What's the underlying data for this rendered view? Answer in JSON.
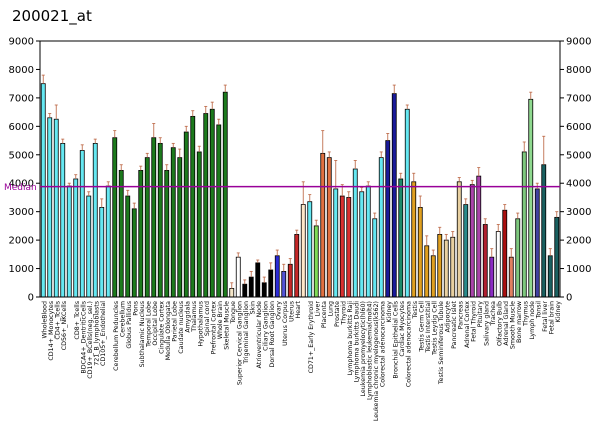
{
  "chart_data": {
    "type": "bar",
    "title": "200021_at",
    "median_label": "Median",
    "median_value": 3880,
    "ylim": [
      0,
      9000
    ],
    "yticks": [
      "0",
      "1000",
      "2000",
      "3000",
      "4000",
      "5000",
      "6000",
      "7000",
      "8000",
      "9000"
    ],
    "grid": false,
    "categories": [
      "WholeBlood",
      "CD14+_Monocytes",
      "CD4+_Tcells",
      "CD56+_NKCells",
      "721_B_lymphoblasts",
      "CD8+_Tcells",
      "BDCA4+_DentriticCells",
      "CD19+_BCells(neg._sel.)",
      "CD34+",
      "CD105+_Endothelial",
      "BM-CD33+Myeloid",
      "Cerebellum Peduncles",
      "Cerebellum",
      "Globus Pallidus",
      "Pons",
      "Subthalamic Nucleus",
      "Temporal Lobe",
      "Occipital Lobe",
      "Cingulate Cortex",
      "Medulla Oblongata",
      "Parietal Lobe",
      "Caudate nucleus",
      "Amygdala",
      "Thalamus",
      "Hypothalamus",
      "Spinal cord",
      "Prefrontal Cortex",
      "Whole Brain",
      "Skeletal Muscle",
      "Tongue",
      "Superior Cervical Ganglion",
      "Trigeminal Ganglion",
      "Skin",
      "Atrioventricular Node",
      "Ciliary Ganglion",
      "Dorsal Root Ganglion",
      "Ovary",
      "Uterus Corpus",
      "Uterus",
      "Heart",
      "Appendix",
      "CD71+_Early Erythroid",
      "Liver",
      "Placenta",
      "Lung",
      "Prostate",
      "Thyroid",
      "Lymphoma burkitts Raji",
      "Lymphoma burkitts Daudi",
      "Leukemia promyelocytic(hl60)",
      "Lymphoblastic leukemia(molt4)",
      "Leukemia chronic myelogenous(k562)",
      "Colorectal adenocarcinoma",
      "Kidney",
      "Bronchial Epithelial Cells",
      "Cardiac Myocytes",
      "Colorectal adenocarcinoma",
      "Testis",
      "Testis Germ Cell",
      "Testis Interstitial",
      "Testis Leydig Cell",
      "Testis Seminiferous Tubule",
      "Adipocyte",
      "Pancreatic Islet",
      "Pancreas",
      "Adrenal Cortex",
      "Fetal Thyroid",
      "Pituitary",
      "Salivary gland",
      "Trachea",
      "Olfactory Bulb",
      "Adrenal Gland",
      "Smooth Muscle",
      "Bone marrow",
      "Thymus",
      "Lymph node",
      "Tonsil",
      "Fetal liver",
      "Fetal brain",
      "Kidney"
    ],
    "xtick_labels": [
      "WholeBlood",
      "CD14+_Monocytes",
      "CD4+_Tcells",
      "CD56+_NKCells",
      "",
      "CD8+_Tcells",
      "BDCA4+_DentriticCells",
      "CD19+_BCells(neg._sel.)",
      "721_B_lymphoblasts",
      "CD105+_Endothelial",
      "",
      "Cerebellum Peduncles",
      "Cerebellum",
      "Globus Pallidus",
      "Pons",
      "Subthalamic Nucleus",
      "Temporal Lobe",
      "Occipital Lobe",
      "Cingulate Cortex",
      "Medulla Oblongata",
      "Parietal Lobe",
      "Caudate nucleus",
      "Amygdala",
      "Thalamus",
      "Hypothalamus",
      "Spinal cord",
      "Prefrontal Cortex",
      "Whole Brain",
      "Skeletal Muscle",
      "Tongue",
      "Superior Cervical Ganglion",
      "Trigeminal Ganglion",
      "Skin",
      "Atrioventricular Node",
      "Ciliary Ganglion",
      "Dorsal Root Ganglion",
      "Ovary",
      "Uterus Corpus",
      "Uterus",
      "Heart",
      "",
      "CD71+_Early Erythroid",
      "Liver",
      "Placenta",
      "Lung",
      "Prostate",
      "Thyroid",
      "Lymphoma burkitts Raji",
      "Lymphoma burkitts Daudi",
      "Leukemia promyelocytic(hl60)",
      "Lymphoblastic leukemia(molt4)",
      "Leukemia chronic myelogenous(k562)",
      "Colorectal adenocarcinoma",
      "Kidney",
      "Bronchial Epithelial Cells",
      "Cardiac Myocytes",
      "Colorectal adenocarcinoma",
      "Testis",
      "Testis Germ Cell",
      "Testis Interstitial",
      "Testis Leydig Cell",
      "Testis Seminiferous Tubule",
      "Adipocyte",
      "Pancreatic Islet",
      "Pancreas",
      "Adrenal Cortex",
      "Fetal Thyroid",
      "Pituitary",
      "Salivary gland",
      "Trachea",
      "Olfactory Bulb",
      "Adrenal Gland",
      "Smooth Muscle",
      "Bone marrow",
      "Thymus",
      "Lymph node",
      "Tonsil",
      "Fetal liver",
      "Fetal brain",
      "Kidney"
    ],
    "values": [
      7500,
      6300,
      6250,
      5400,
      3900,
      4150,
      5150,
      3550,
      5400,
      3150,
      3900,
      5600,
      4450,
      3550,
      3100,
      4450,
      4900,
      5600,
      5400,
      4450,
      5250,
      4900,
      5800,
      6350,
      5100,
      6450,
      6600,
      6050,
      7200,
      300,
      1400,
      450,
      700,
      1200,
      500,
      950,
      1450,
      900,
      1150,
      2200,
      3250,
      3350,
      2500,
      5050,
      4900,
      3800,
      3550,
      3500,
      4500,
      3700,
      3900,
      2750,
      4900,
      5500,
      7150,
      4150,
      6600,
      4050,
      3150,
      1800,
      1450,
      2200,
      2000,
      2100,
      4050,
      3250,
      3950,
      4250,
      2550,
      1400,
      2300,
      3050,
      1400,
      2750,
      5100,
      6950,
      3800,
      4650,
      1450,
      2800
    ],
    "errors": [
      300,
      150,
      500,
      150,
      100,
      150,
      200,
      150,
      150,
      300,
      150,
      250,
      200,
      200,
      200,
      150,
      150,
      500,
      200,
      200,
      150,
      300,
      200,
      200,
      200,
      250,
      250,
      200,
      250,
      200,
      150,
      150,
      200,
      100,
      200,
      250,
      200,
      250,
      200,
      150,
      800,
      250,
      200,
      800,
      200,
      1000,
      400,
      200,
      300,
      150,
      150,
      200,
      200,
      250,
      300,
      200,
      150,
      300,
      400,
      350,
      200,
      250,
      200,
      200,
      150,
      200,
      150,
      300,
      200,
      300,
      250,
      200,
      300,
      200,
      350,
      250,
      200,
      1000,
      250,
      200
    ],
    "colors": [
      "#66e8f2",
      "#66e8f2",
      "#66e8f2",
      "#66e8f2",
      "#66e8f2",
      "#66e8f2",
      "#66e8f2",
      "#66e8f2",
      "#66e8f2",
      "#66e8f2",
      "#66e8f2",
      "#1d7a1d",
      "#1d7a1d",
      "#1d7a1d",
      "#1d7a1d",
      "#1d7a1d",
      "#1d7a1d",
      "#1d7a1d",
      "#1d7a1d",
      "#1d7a1d",
      "#1d7a1d",
      "#1d7a1d",
      "#1d7a1d",
      "#1d7a1d",
      "#1d7a1d",
      "#1d7a1d",
      "#1d7a1d",
      "#1d7a1d",
      "#1d7a1d",
      "#f5e6c8",
      "#ffffff",
      "#000000",
      "#000000",
      "#000000",
      "#000000",
      "#000000",
      "#2a2ad6",
      "#5353d6",
      "#c42828",
      "#c42828",
      "#ffe6c8",
      "#66e8f2",
      "#7ed957",
      "#e07040",
      "#e07040",
      "#66e8f2",
      "#d93030",
      "#d93030",
      "#66e8f2",
      "#66e8f2",
      "#66e8f2",
      "#66e8f2",
      "#66e8f2",
      "#1a1a99",
      "#1a1a99",
      "#1d8a6a",
      "#66e8f2",
      "#e0a020",
      "#e0a020",
      "#e0a020",
      "#e0a020",
      "#e0a020",
      "#e8d0a0",
      "#e8d0a0",
      "#e8d0a0",
      "#2a8a8a",
      "#aa44aa",
      "#aa44aa",
      "#b02030",
      "#8a2bc2",
      "#ffffff",
      "#aa1010",
      "#e08060",
      "#7ec87e",
      "#7ec87e",
      "#8fd98f",
      "#4040a0",
      "#1a6060",
      "#1a6060",
      "#1a6060"
    ]
  }
}
